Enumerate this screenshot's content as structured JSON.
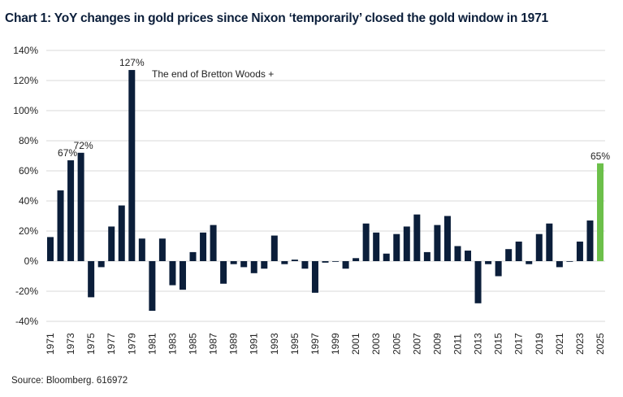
{
  "chart_data": {
    "type": "bar",
    "title": "Chart 1: YoY changes in gold prices since Nixon ‘temporarily’ closed the gold window in 1971",
    "source": "Source: Bloomberg. 616972",
    "annotation": "The end of Bretton Woods +",
    "xlabel": "",
    "ylabel": "",
    "ylim": [
      -40,
      140
    ],
    "yticks": [
      "-40%",
      "-20%",
      "0%",
      "20%",
      "40%",
      "60%",
      "80%",
      "100%",
      "120%",
      "140%"
    ],
    "ytick_values": [
      -40,
      -20,
      0,
      20,
      40,
      60,
      80,
      100,
      120,
      140
    ],
    "grid": true,
    "categories": [
      "1971",
      "1972",
      "1973",
      "1974",
      "1975",
      "1976",
      "1977",
      "1978",
      "1979",
      "1980",
      "1981",
      "1982",
      "1983",
      "1984",
      "1985",
      "1986",
      "1987",
      "1988",
      "1989",
      "1990",
      "1991",
      "1992",
      "1993",
      "1994",
      "1995",
      "1996",
      "1997",
      "1998",
      "1999",
      "2000",
      "2001",
      "2002",
      "2003",
      "2004",
      "2005",
      "2006",
      "2007",
      "2008",
      "2009",
      "2010",
      "2011",
      "2012",
      "2013",
      "2014",
      "2015",
      "2016",
      "2017",
      "2018",
      "2019",
      "2020",
      "2021",
      "2022",
      "2023",
      "2024",
      "2025"
    ],
    "xtick_labels": [
      "1971",
      "1973",
      "1975",
      "1977",
      "1979",
      "1981",
      "1983",
      "1985",
      "1987",
      "1989",
      "1991",
      "1993",
      "1995",
      "1997",
      "1999",
      "2001",
      "2003",
      "2005",
      "2007",
      "2009",
      "2011",
      "2013",
      "2015",
      "2017",
      "2019",
      "2021",
      "2023",
      "2025"
    ],
    "values": [
      16,
      47,
      67,
      72,
      -24,
      -4,
      23,
      37,
      127,
      15,
      -33,
      15,
      -16,
      -19,
      6,
      19,
      24,
      -15,
      -2,
      -4,
      -8,
      -5,
      17,
      -2,
      1,
      -5,
      -21,
      -1,
      0,
      -5,
      2,
      25,
      19,
      5,
      18,
      23,
      31,
      6,
      24,
      30,
      10,
      7,
      -28,
      -2,
      -10,
      8,
      13,
      -2,
      18,
      25,
      -4,
      0,
      13,
      27,
      65
    ],
    "data_labels": {
      "1973": "67%",
      "1974": "72%",
      "1979": "127%",
      "2025": "65%"
    },
    "colors": {
      "bar": "#0b1e3a",
      "highlight": "#6cc04a",
      "grid": "#e6e6e6"
    }
  }
}
